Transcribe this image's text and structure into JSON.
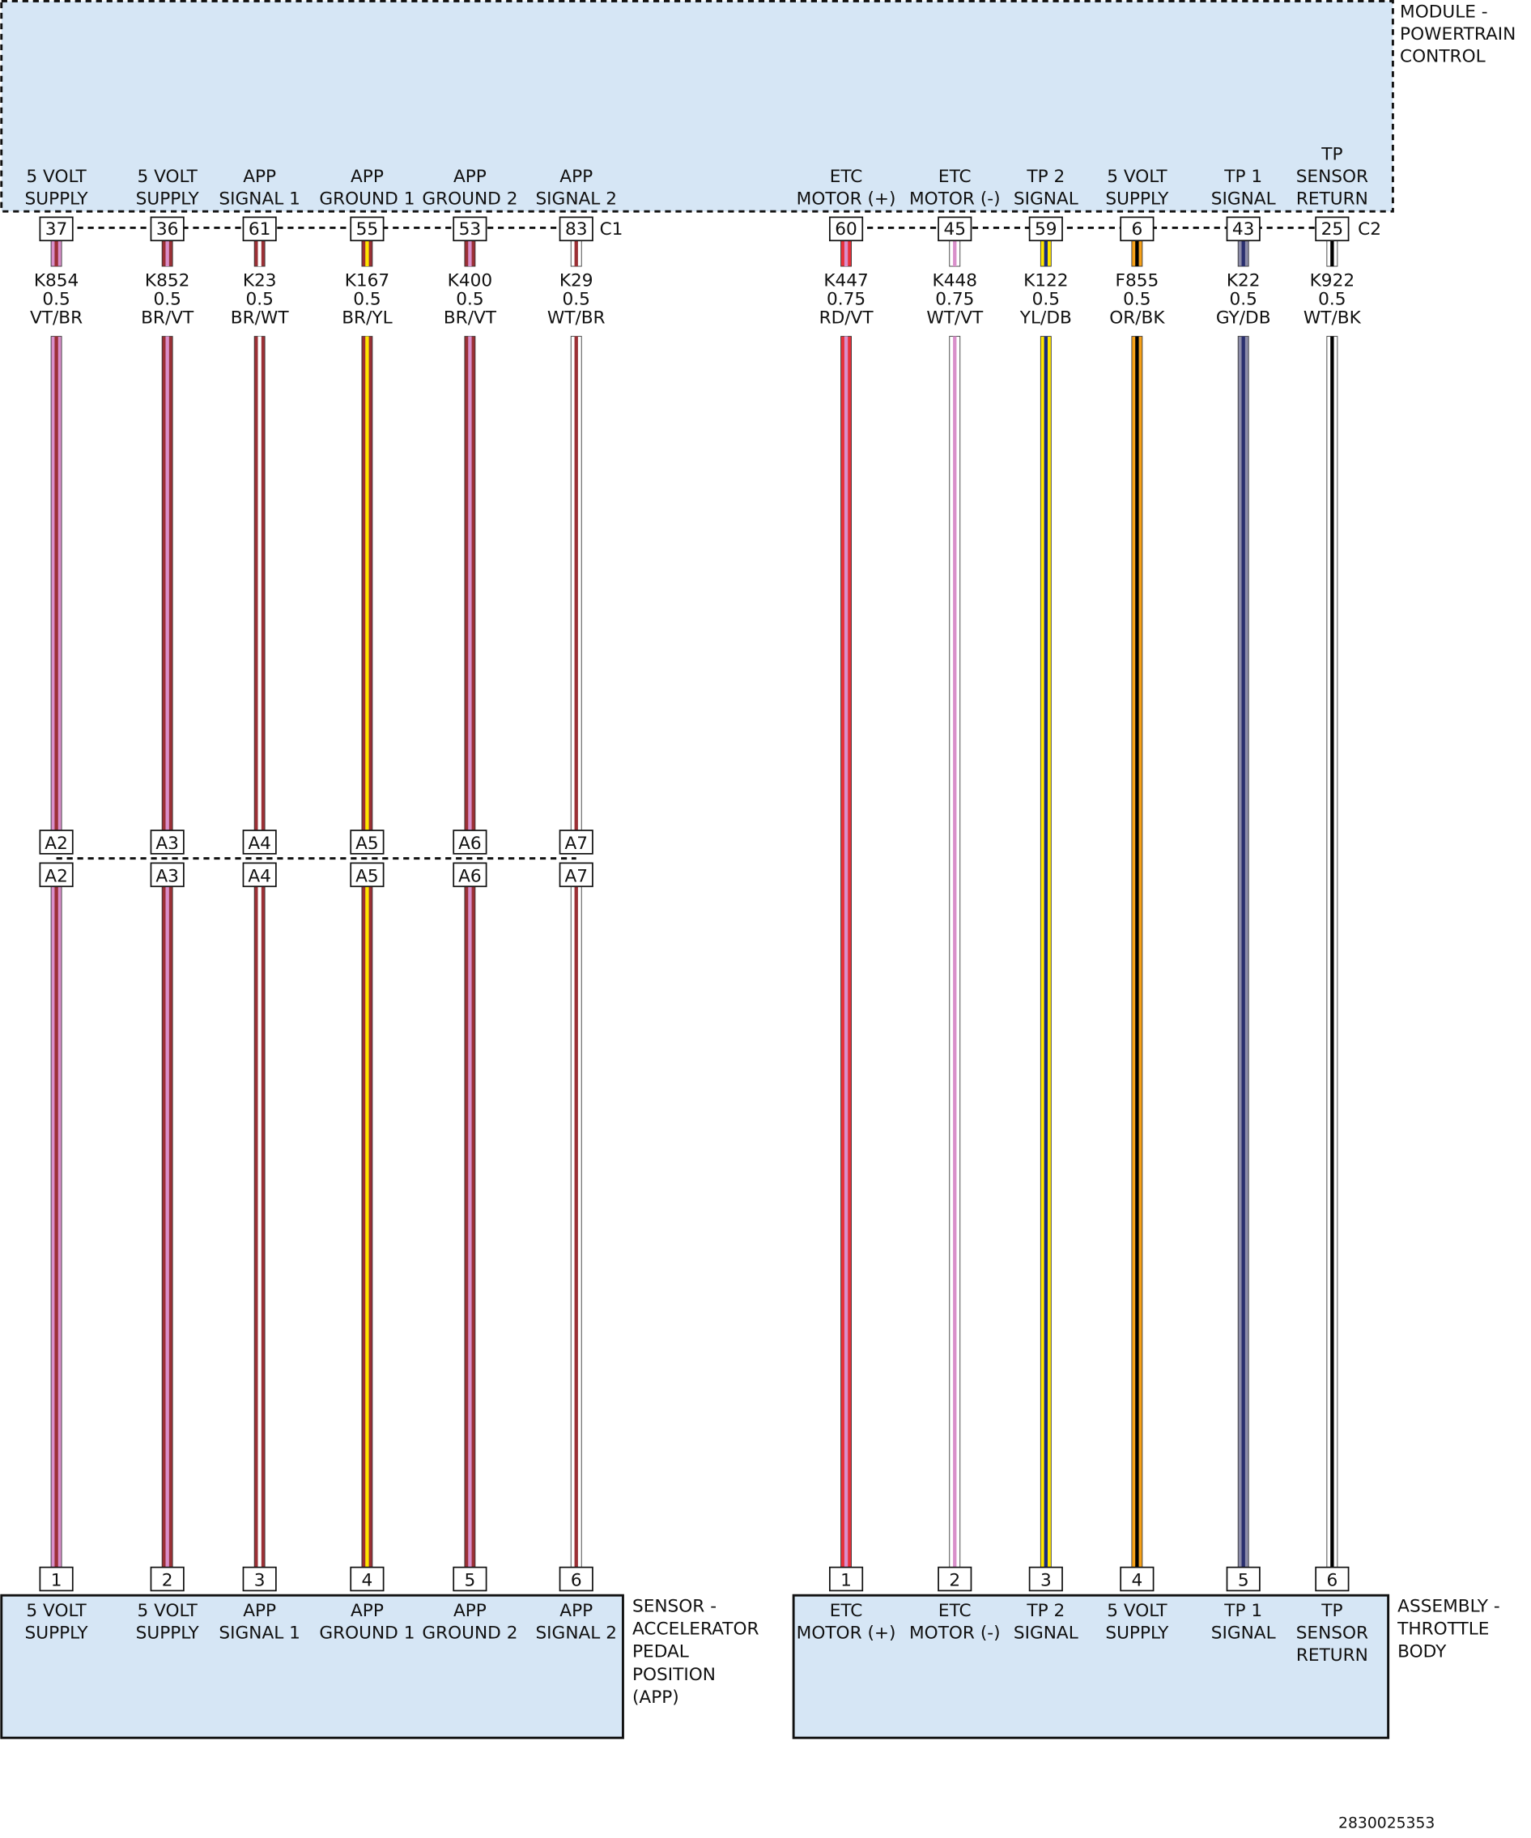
{
  "module": {
    "label": [
      "MODULE -",
      "POWERTRAIN",
      "CONTROL"
    ]
  },
  "connectors": {
    "c1": "C1",
    "c2": "C2"
  },
  "wires": [
    {
      "top_label": [
        "5 VOLT",
        "SUPPLY"
      ],
      "pin": "37",
      "circuit": "K854",
      "gauge": "0.5",
      "color": "VT/BR",
      "base": "#d98fca",
      "stripe": "#9b3035",
      "inline": "A2",
      "bottom_pin": "1",
      "bottom_label": [
        "5 VOLT",
        "SUPPLY"
      ]
    },
    {
      "top_label": [
        "5 VOLT",
        "SUPPLY"
      ],
      "pin": "36",
      "circuit": "K852",
      "gauge": "0.5",
      "color": "BR/VT",
      "base": "#9b3035",
      "stripe": "#d98fca",
      "inline": "A3",
      "bottom_pin": "2",
      "bottom_label": [
        "5 VOLT",
        "SUPPLY"
      ]
    },
    {
      "top_label": [
        "APP",
        "SIGNAL 1"
      ],
      "pin": "61",
      "circuit": "K23",
      "gauge": "0.5",
      "color": "BR/WT",
      "base": "#9b3035",
      "stripe": "#ffffff",
      "inline": "A4",
      "bottom_pin": "3",
      "bottom_label": [
        "APP",
        "SIGNAL 1"
      ]
    },
    {
      "top_label": [
        "APP",
        "GROUND 1"
      ],
      "pin": "55",
      "circuit": "K167",
      "gauge": "0.5",
      "color": "BR/YL",
      "base": "#9b3035",
      "stripe": "#ffe600",
      "inline": "A5",
      "bottom_pin": "4",
      "bottom_label": [
        "APP",
        "GROUND 1"
      ]
    },
    {
      "top_label": [
        "APP",
        "GROUND 2"
      ],
      "pin": "53",
      "circuit": "K400",
      "gauge": "0.5",
      "color": "BR/VT",
      "base": "#9b3035",
      "stripe": "#d98fca",
      "inline": "A6",
      "bottom_pin": "5",
      "bottom_label": [
        "APP",
        "GROUND 2"
      ]
    },
    {
      "top_label": [
        "APP",
        "SIGNAL 2"
      ],
      "pin": "83",
      "circuit": "K29",
      "gauge": "0.5",
      "color": "WT/BR",
      "base": "#ffffff",
      "stripe": "#9b3035",
      "inline": "A7",
      "bottom_pin": "6",
      "bottom_label": [
        "APP",
        "SIGNAL 2"
      ]
    },
    {
      "top_label": [
        "ETC",
        "MOTOR (+)"
      ],
      "pin": "60",
      "circuit": "K447",
      "gauge": "0.75",
      "color": "RD/VT",
      "base": "#e8303a",
      "stripe": "#d98fca",
      "bottom_pin": "1",
      "bottom_label": [
        "ETC",
        "MOTOR (+)"
      ]
    },
    {
      "top_label": [
        "ETC",
        "MOTOR (-)"
      ],
      "pin": "45",
      "circuit": "K448",
      "gauge": "0.75",
      "color": "WT/VT",
      "base": "#ffffff",
      "stripe": "#d98fca",
      "bottom_pin": "2",
      "bottom_label": [
        "ETC",
        "MOTOR (-)"
      ]
    },
    {
      "top_label": [
        "TP 2",
        "SIGNAL"
      ],
      "pin": "59",
      "circuit": "K122",
      "gauge": "0.5",
      "color": "YL/DB",
      "base": "#ffe600",
      "stripe": "#1a2a80",
      "bottom_pin": "3",
      "bottom_label": [
        "TP 2",
        "SIGNAL"
      ]
    },
    {
      "top_label": [
        "5 VOLT",
        "SUPPLY"
      ],
      "pin": "6",
      "circuit": "F855",
      "gauge": "0.5",
      "color": "OR/BK",
      "base": "#f5a019",
      "stripe": "#000000",
      "bottom_pin": "4",
      "bottom_label": [
        "5 VOLT",
        "SUPPLY"
      ]
    },
    {
      "top_label": [
        "TP 1",
        "SIGNAL"
      ],
      "pin": "43",
      "circuit": "K22",
      "gauge": "0.5",
      "color": "GY/DB",
      "base": "#8c8ca8",
      "stripe": "#2a2f6e",
      "bottom_pin": "5",
      "bottom_label": [
        "TP 1",
        "SIGNAL"
      ]
    },
    {
      "top_label": [
        "TP",
        "SENSOR",
        "RETURN"
      ],
      "pin": "25",
      "circuit": "K922",
      "gauge": "0.5",
      "color": "WT/BK",
      "base": "#ffffff",
      "stripe": "#000000",
      "bottom_pin": "6",
      "bottom_label": [
        "TP",
        "SENSOR",
        "RETURN"
      ]
    }
  ],
  "sensor": {
    "label": [
      "SENSOR -",
      "ACCELERATOR",
      "PEDAL",
      "POSITION",
      "(APP)"
    ]
  },
  "assembly": {
    "label": [
      "ASSEMBLY -",
      "THROTTLE",
      "BODY"
    ]
  },
  "figure_id": "2830025353"
}
